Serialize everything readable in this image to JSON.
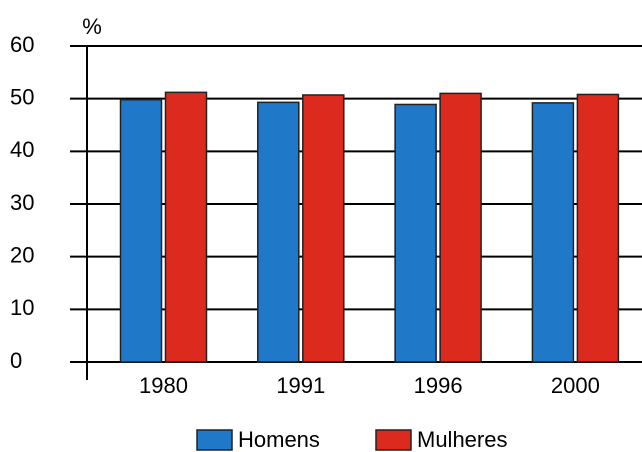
{
  "chart_data": {
    "type": "bar",
    "y_label": "%",
    "categories": [
      "1980",
      "1991",
      "1996",
      "2000"
    ],
    "series": [
      {
        "name": "Homens",
        "color": "#1f78c8",
        "values": [
          49.8,
          49.3,
          48.9,
          49.2
        ]
      },
      {
        "name": "Mulheres",
        "color": "#dc2b1e",
        "values": [
          51.2,
          50.7,
          51.0,
          50.8
        ]
      }
    ],
    "ylim": [
      0,
      60
    ],
    "yticks": [
      0,
      10,
      20,
      30,
      40,
      50,
      60
    ],
    "grid": true,
    "legend": "bottom"
  }
}
